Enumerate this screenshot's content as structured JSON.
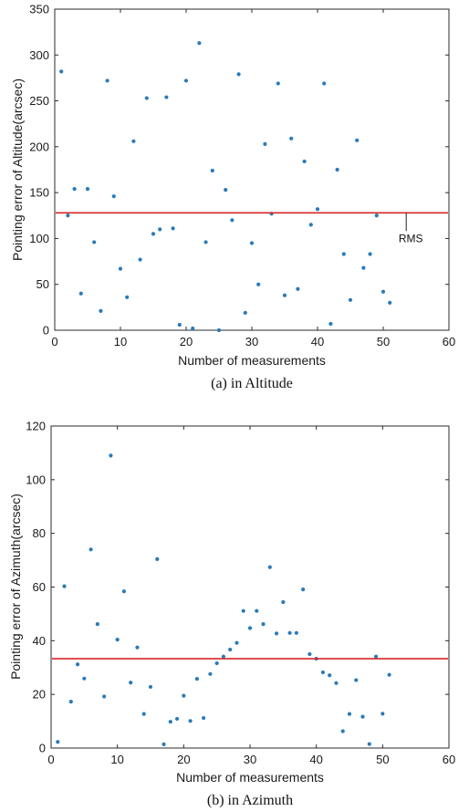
{
  "chart_data": [
    {
      "type": "scatter",
      "caption": "(a) in Altitude",
      "xlabel": "Number of measurements",
      "ylabel": "Pointing error of Altitude(arcsec)",
      "xlim": [
        0,
        60
      ],
      "ylim": [
        0,
        350
      ],
      "xticks": [
        0,
        10,
        20,
        30,
        40,
        50,
        60
      ],
      "yticks": [
        0,
        50,
        100,
        150,
        200,
        250,
        300,
        350
      ],
      "marker_color": "#2a7ab8",
      "rms": {
        "value": 128,
        "color": "#d62728",
        "label": "RMS"
      },
      "series": [
        {
          "x": [
            1,
            2,
            3,
            4,
            5,
            6,
            7,
            8,
            9,
            10,
            11,
            12,
            13,
            14,
            15,
            16,
            17,
            18,
            19,
            20,
            21,
            22,
            23,
            24,
            25,
            26,
            27,
            28,
            29,
            30,
            31,
            32,
            33,
            34,
            35,
            36,
            37,
            38,
            39,
            40,
            41,
            42,
            43,
            44,
            45,
            46,
            47,
            48,
            49,
            50,
            51
          ],
          "y": [
            282,
            125,
            154,
            40,
            154,
            96,
            21,
            272,
            146,
            67,
            36,
            206,
            77,
            253,
            105,
            110,
            254,
            111,
            6,
            272,
            2,
            313,
            96,
            174,
            0,
            153,
            120,
            279,
            19,
            95,
            50,
            203,
            127,
            269,
            38,
            209,
            45,
            184,
            115,
            132,
            269,
            7,
            175,
            83,
            33,
            207,
            68,
            83,
            125,
            42,
            30
          ]
        }
      ]
    },
    {
      "type": "scatter",
      "caption": "(b) in Azimuth",
      "xlabel": "Number of measurements",
      "ylabel": "Pointing error of Azimuth(arcsec)",
      "xlim": [
        0,
        60
      ],
      "ylim": [
        0,
        120
      ],
      "xticks": [
        0,
        10,
        20,
        30,
        40,
        50,
        60
      ],
      "yticks": [
        0,
        20,
        40,
        60,
        80,
        100,
        120
      ],
      "marker_color": "#2a7ab8",
      "rms": {
        "value": 33.3,
        "color": "#d62728",
        "label": ""
      },
      "series": [
        {
          "x": [
            1,
            2,
            3,
            4,
            5,
            6,
            7,
            8,
            9,
            10,
            11,
            12,
            13,
            14,
            15,
            16,
            17,
            18,
            19,
            20,
            21,
            22,
            23,
            24,
            25,
            26,
            27,
            28,
            29,
            30,
            31,
            32,
            33,
            34,
            35,
            36,
            37,
            38,
            39,
            40,
            41,
            42,
            43,
            44,
            45,
            46,
            47,
            48,
            49,
            50,
            51
          ],
          "y": [
            2.3,
            60.3,
            17.3,
            31.2,
            25.9,
            74.0,
            46.2,
            19.2,
            109.0,
            40.4,
            58.4,
            24.4,
            37.5,
            12.7,
            22.8,
            70.4,
            1.4,
            9.8,
            10.9,
            19.5,
            10.1,
            25.8,
            11.2,
            27.6,
            31.6,
            34.1,
            36.7,
            39.2,
            51.1,
            44.7,
            51.1,
            46.2,
            67.4,
            42.7,
            54.4,
            42.9,
            42.9,
            59.1,
            35.0,
            33.3,
            28.2,
            27.1,
            24.2,
            6.3,
            12.7,
            25.3,
            11.7,
            1.5,
            34.1,
            12.8,
            27.3
          ]
        }
      ]
    }
  ]
}
